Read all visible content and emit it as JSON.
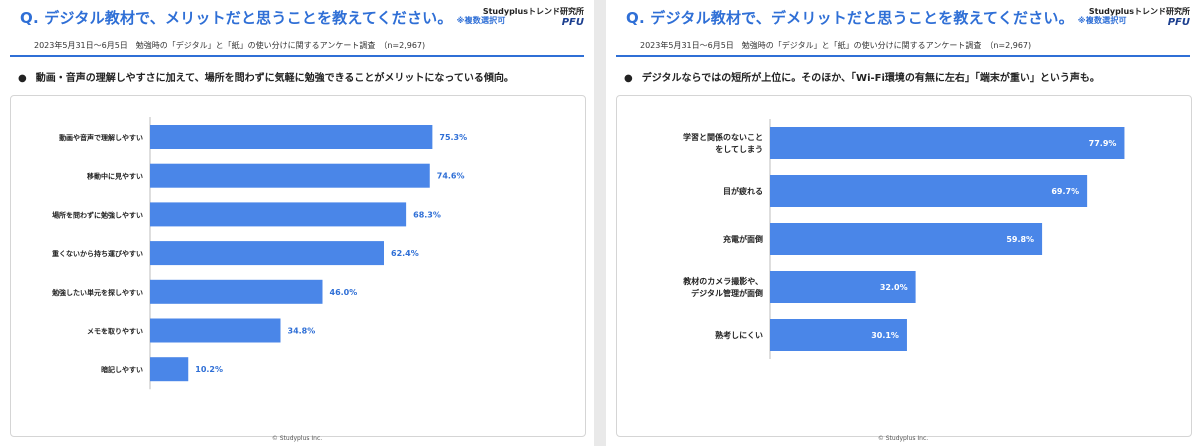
{
  "left": {
    "title": "Q. デジタル教材で、メリットだと思うことを教えてください。",
    "title_note": "※複数選択可",
    "brand_name": "Studyplusトレンド研究所",
    "brand_logo": "PFU",
    "subtitle": "2023年5月31日〜6月5日　勉強時の「デジタル」と「紙」の使い分けに関するアンケート調査　（n=2,967)",
    "bullet_mark": "●",
    "bullet": "動画・音声の理解しやすさに加えて、場所を問わずに気軽に勉強できることがメリットになっている傾向。",
    "copyright": "© Studyplus Inc."
  },
  "right": {
    "title": "Q. デジタル教材で、デメリットだと思うことを教えてください。",
    "title_note": "※複数選択可",
    "brand_name": "Studyplusトレンド研究所",
    "brand_logo": "PFU",
    "subtitle": "2023年5月31日〜6月5日　勉強時の「デジタル」と「紙」の使い分けに関するアンケート調査　（n=2,967)",
    "bullet_mark": "●",
    "bullet": "デジタルならではの短所が上位に。そのほか、「Wi-Fi環境の有無に左右」「端末が重い」という声も。",
    "copyright": "© Studyplus Inc."
  },
  "colors": {
    "bar": "#4a86e8",
    "accent": "#2f6fd6"
  },
  "chart_data": [
    {
      "type": "bar",
      "orientation": "horizontal",
      "title": "",
      "categories": [
        "動画や音声で理解しやすい",
        "移動中に見やすい",
        "場所を問わずに勉強しやすい",
        "重くないから持ち運びやすい",
        "勉強したい単元を探しやすい",
        "メモを取りやすい",
        "暗記しやすい"
      ],
      "values": [
        75.3,
        74.6,
        68.3,
        62.4,
        46.0,
        34.8,
        10.2
      ],
      "value_labels": [
        "75.3%",
        "74.6%",
        "68.3%",
        "62.4%",
        "46.0%",
        "34.8%",
        "10.2%"
      ],
      "label_position": "outside",
      "xlim": [
        0,
        100
      ]
    },
    {
      "type": "bar",
      "orientation": "horizontal",
      "title": "",
      "categories": [
        "学習と関係のないことをしてしまう",
        "目が疲れる",
        "充電が面倒",
        "教材のカメラ撮影や、デジタル管理が面倒",
        "熟考しにくい"
      ],
      "category_lines": [
        [
          "学習と関係のないこと",
          "をしてしまう"
        ],
        [
          "目が疲れる"
        ],
        [
          "充電が面倒"
        ],
        [
          "教材のカメラ撮影や、",
          "デジタル管理が面倒"
        ],
        [
          "熟考しにくい"
        ]
      ],
      "values": [
        77.9,
        69.7,
        59.8,
        32.0,
        30.1
      ],
      "value_labels": [
        "77.9%",
        "69.7%",
        "59.8%",
        "32.0%",
        "30.1%"
      ],
      "label_position": "inside",
      "xlim": [
        0,
        100
      ]
    }
  ]
}
